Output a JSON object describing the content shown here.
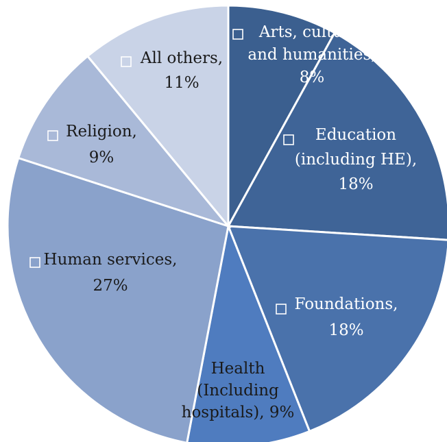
{
  "chart_data": {
    "type": "pie",
    "title": "",
    "slices": [
      {
        "label": "Arts, culture, and humanities",
        "value": 8,
        "color": "#3b5f8f",
        "label_color": "#ffffff",
        "text": [
          "Arts, culture,",
          "and humanities,",
          "8%"
        ]
      },
      {
        "label": "Education (including HE)",
        "value": 18,
        "color": "#3f6497",
        "label_color": "#ffffff",
        "text": [
          "Education",
          "(including HE),",
          "18%"
        ]
      },
      {
        "label": "Foundations",
        "value": 18,
        "color": "#4a72ab",
        "label_color": "#ffffff",
        "text": [
          "Foundations,",
          "18%"
        ]
      },
      {
        "label": "Health (Including hospitals)",
        "value": 9,
        "color": "#4f7cbf",
        "label_color": "#1a1a1a",
        "text": [
          "Health",
          "(Including",
          "hospitals), 9%"
        ]
      },
      {
        "label": "Human services",
        "value": 27,
        "color": "#8aa2cb",
        "label_color": "#1a1a1a",
        "text": [
          "Human services,",
          "27%"
        ]
      },
      {
        "label": "Religion",
        "value": 9,
        "color": "#a9b9d8",
        "label_color": "#1a1a1a",
        "text": [
          "Religion,",
          "9%"
        ]
      },
      {
        "label": "All others",
        "value": 11,
        "color": "#c9d3e7",
        "label_color": "#1a1a1a",
        "text": [
          "All others,",
          "11%"
        ]
      }
    ],
    "legend": "none"
  }
}
